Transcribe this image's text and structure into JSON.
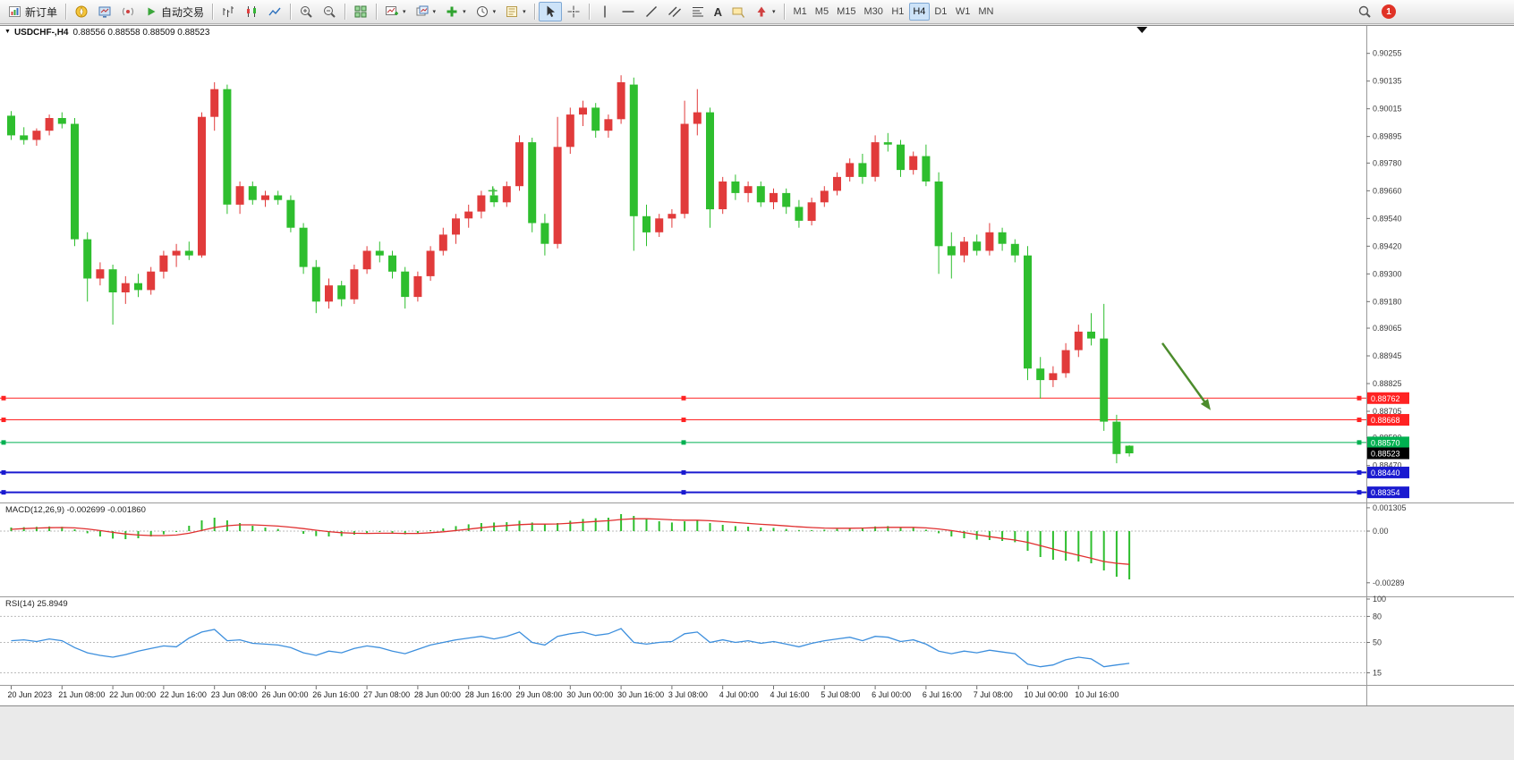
{
  "toolbar": {
    "new_order_label": "新订单",
    "auto_trading_label": "自动交易",
    "timeframes": [
      "M1",
      "M5",
      "M15",
      "M30",
      "H1",
      "H4",
      "D1",
      "W1",
      "MN"
    ],
    "active_timeframe": "H4",
    "notification_count": "1"
  },
  "icons": {
    "caret": "▾",
    "collapse": "▼",
    "text_tool": "A"
  },
  "chart": {
    "symbol_period": "USDCHF-,H4",
    "ohlc_text": "0.88556 0.88558 0.88509 0.88523"
  },
  "indicators": {
    "macd": {
      "label": "MACD(12,26,9)",
      "values": "-0.002699 -0.001860"
    },
    "rsi": {
      "label": "RSI(14)",
      "value": "25.8949"
    }
  },
  "theme": {
    "bull": "#e13b3b",
    "bear": "#2ebe2e",
    "macd_hist": "#2ebe2e",
    "macd_signal": "#e03030",
    "rsi": "#3d8fdd"
  },
  "chart_data": {
    "type": "candlestick",
    "symbol": "USDCHF-",
    "timeframe": "H4",
    "main": {
      "price_top": 0.9037,
      "price_bottom": 0.8831,
      "axis_labels": [
        "0.90255",
        "0.90135",
        "0.90015",
        "0.89895",
        "0.89780",
        "0.89660",
        "0.89540",
        "0.89420",
        "0.89300",
        "0.89180",
        "0.89065",
        "0.88945",
        "0.88825",
        "0.88705",
        "0.88590",
        "0.88470",
        "0.88354"
      ],
      "bid": {
        "price": 0.88523,
        "label": "0.88523"
      },
      "shift_marker_bar": 89
    },
    "candles": [
      [
        0.89985,
        0.90005,
        0.8988,
        0.899
      ],
      [
        0.899,
        0.89935,
        0.8986,
        0.8988
      ],
      [
        0.8988,
        0.8993,
        0.89855,
        0.8992
      ],
      [
        0.8992,
        0.8999,
        0.899,
        0.89975
      ],
      [
        0.89975,
        0.9,
        0.8993,
        0.8995
      ],
      [
        0.8995,
        0.89975,
        0.8942,
        0.8945
      ],
      [
        0.8945,
        0.8948,
        0.8918,
        0.8928
      ],
      [
        0.8928,
        0.8935,
        0.8925,
        0.8932
      ],
      [
        0.8932,
        0.8934,
        0.8908,
        0.8922
      ],
      [
        0.8922,
        0.8929,
        0.8917,
        0.8926
      ],
      [
        0.8926,
        0.893,
        0.892,
        0.8923
      ],
      [
        0.8923,
        0.8933,
        0.8921,
        0.8931
      ],
      [
        0.8931,
        0.894,
        0.8928,
        0.8938
      ],
      [
        0.8938,
        0.8943,
        0.8933,
        0.894
      ],
      [
        0.894,
        0.8944,
        0.8936,
        0.8938
      ],
      [
        0.8938,
        0.9,
        0.8937,
        0.8998
      ],
      [
        0.8998,
        0.9013,
        0.8992,
        0.901
      ],
      [
        0.901,
        0.9012,
        0.8956,
        0.896
      ],
      [
        0.896,
        0.897,
        0.8956,
        0.8968
      ],
      [
        0.8968,
        0.897,
        0.896,
        0.8962
      ],
      [
        0.8962,
        0.8966,
        0.8959,
        0.8964
      ],
      [
        0.8964,
        0.8966,
        0.896,
        0.8962
      ],
      [
        0.8962,
        0.8964,
        0.8948,
        0.895
      ],
      [
        0.895,
        0.8952,
        0.893,
        0.8933
      ],
      [
        0.8933,
        0.8936,
        0.8913,
        0.8918
      ],
      [
        0.8918,
        0.8928,
        0.8915,
        0.8925
      ],
      [
        0.8925,
        0.8927,
        0.8916,
        0.8919
      ],
      [
        0.8919,
        0.8934,
        0.8917,
        0.8932
      ],
      [
        0.8932,
        0.8942,
        0.893,
        0.894
      ],
      [
        0.894,
        0.8944,
        0.8935,
        0.8938
      ],
      [
        0.8938,
        0.894,
        0.8928,
        0.8931
      ],
      [
        0.8931,
        0.8933,
        0.8915,
        0.892
      ],
      [
        0.892,
        0.8931,
        0.8918,
        0.8929
      ],
      [
        0.8929,
        0.8942,
        0.8927,
        0.894
      ],
      [
        0.894,
        0.895,
        0.8938,
        0.8947
      ],
      [
        0.8947,
        0.8956,
        0.8943,
        0.8954
      ],
      [
        0.8954,
        0.896,
        0.895,
        0.8957
      ],
      [
        0.8957,
        0.8966,
        0.8954,
        0.8964
      ],
      [
        0.8964,
        0.8967,
        0.8959,
        0.8961
      ],
      [
        0.8961,
        0.897,
        0.8959,
        0.8968
      ],
      [
        0.8968,
        0.899,
        0.8966,
        0.8987
      ],
      [
        0.8987,
        0.8989,
        0.8948,
        0.8952
      ],
      [
        0.8952,
        0.8956,
        0.8938,
        0.8943
      ],
      [
        0.8943,
        0.8998,
        0.8941,
        0.8985
      ],
      [
        0.8985,
        0.9002,
        0.8982,
        0.8999
      ],
      [
        0.8999,
        0.9005,
        0.8994,
        0.9002
      ],
      [
        0.9002,
        0.9004,
        0.8989,
        0.8992
      ],
      [
        0.8992,
        0.8999,
        0.8989,
        0.8997
      ],
      [
        0.8997,
        0.9016,
        0.8995,
        0.9013
      ],
      [
        0.9012,
        0.9015,
        0.894,
        0.8955
      ],
      [
        0.8955,
        0.896,
        0.8942,
        0.8948
      ],
      [
        0.8948,
        0.8956,
        0.8946,
        0.8954
      ],
      [
        0.8954,
        0.8958,
        0.895,
        0.8956
      ],
      [
        0.8956,
        0.9005,
        0.8954,
        0.8995
      ],
      [
        0.8995,
        0.901,
        0.899,
        0.9
      ],
      [
        0.9,
        0.9002,
        0.895,
        0.8958
      ],
      [
        0.8958,
        0.8972,
        0.8956,
        0.897
      ],
      [
        0.897,
        0.8973,
        0.8962,
        0.8965
      ],
      [
        0.8965,
        0.897,
        0.8961,
        0.8968
      ],
      [
        0.8968,
        0.897,
        0.8959,
        0.8961
      ],
      [
        0.8961,
        0.8967,
        0.8958,
        0.8965
      ],
      [
        0.8965,
        0.8967,
        0.8956,
        0.8959
      ],
      [
        0.8959,
        0.8962,
        0.895,
        0.8953
      ],
      [
        0.8953,
        0.8963,
        0.8951,
        0.8961
      ],
      [
        0.8961,
        0.8968,
        0.8959,
        0.8966
      ],
      [
        0.8966,
        0.8974,
        0.8964,
        0.8972
      ],
      [
        0.8972,
        0.898,
        0.897,
        0.8978
      ],
      [
        0.8978,
        0.8982,
        0.8969,
        0.8972
      ],
      [
        0.8972,
        0.899,
        0.897,
        0.8987
      ],
      [
        0.8987,
        0.8991,
        0.8983,
        0.8986
      ],
      [
        0.8986,
        0.8988,
        0.8972,
        0.8975
      ],
      [
        0.8975,
        0.8983,
        0.8973,
        0.8981
      ],
      [
        0.8981,
        0.8986,
        0.8968,
        0.897
      ],
      [
        0.897,
        0.8974,
        0.893,
        0.8942
      ],
      [
        0.8942,
        0.8948,
        0.8928,
        0.8938
      ],
      [
        0.8938,
        0.8946,
        0.8935,
        0.8944
      ],
      [
        0.8944,
        0.8947,
        0.8938,
        0.894
      ],
      [
        0.894,
        0.8952,
        0.8938,
        0.8948
      ],
      [
        0.8948,
        0.895,
        0.894,
        0.8943
      ],
      [
        0.8943,
        0.8945,
        0.8935,
        0.8938
      ],
      [
        0.8938,
        0.8942,
        0.8884,
        0.8889
      ],
      [
        0.8889,
        0.8894,
        0.8876,
        0.8884
      ],
      [
        0.8884,
        0.889,
        0.8881,
        0.8887
      ],
      [
        0.8887,
        0.89,
        0.8885,
        0.8897
      ],
      [
        0.8897,
        0.8908,
        0.8894,
        0.8905
      ],
      [
        0.8905,
        0.8913,
        0.8899,
        0.8902
      ],
      [
        0.8902,
        0.8917,
        0.8862,
        0.8866
      ],
      [
        0.8866,
        0.8869,
        0.8848,
        0.8852
      ],
      [
        0.88556,
        0.88558,
        0.88509,
        0.88523
      ]
    ],
    "time_labels": [
      "20 Jun 2023",
      "21 Jun 08:00",
      "22 Jun 00:00",
      "22 Jun 16:00",
      "23 Jun 08:00",
      "26 Jun 00:00",
      "26 Jun 16:00",
      "27 Jun 08:00",
      "28 Jun 00:00",
      "28 Jun 16:00",
      "29 Jun 08:00",
      "30 Jun 00:00",
      "30 Jun 16:00",
      "3 Jul 08:00",
      "4 Jul 00:00",
      "4 Jul 16:00",
      "5 Jul 08:00",
      "6 Jul 00:00",
      "6 Jul 16:00",
      "7 Jul 08:00",
      "10 Jul 00:00",
      "10 Jul 16:00"
    ],
    "hlines": [
      {
        "price": 0.88762,
        "label": "0.88762",
        "color": "#ff2222",
        "thick": false
      },
      {
        "price": 0.88668,
        "label": "0.88668",
        "color": "#ff2222",
        "thick": false
      },
      {
        "price": 0.8857,
        "label": "0.88570",
        "color": "#00b050",
        "thick": false
      },
      {
        "price": 0.8844,
        "label": "0.88440",
        "color": "#1a1ad0",
        "thick": true
      },
      {
        "price": 0.88354,
        "label": "0.88354",
        "color": "#1a1ad0",
        "thick": true
      }
    ],
    "macd": {
      "histogram": [
        0.0002,
        0.00022,
        0.00024,
        0.00026,
        0.00024,
        0.0001,
        -0.00012,
        -0.0003,
        -0.00042,
        -0.00045,
        -0.0004,
        -0.0003,
        -0.00018,
        -5e-05,
        0.0003,
        0.0006,
        0.00075,
        0.0006,
        0.00045,
        0.0003,
        0.0002,
        0.00012,
        0.0,
        -0.00015,
        -0.00028,
        -0.0003,
        -0.00028,
        -0.0002,
        -0.0001,
        -5e-05,
        -0.0001,
        -0.00018,
        -0.00012,
        5e-05,
        0.00015,
        0.00028,
        0.00038,
        0.00045,
        0.00048,
        0.0005,
        0.00058,
        0.00048,
        0.00038,
        0.00045,
        0.00058,
        0.00068,
        0.00072,
        0.00075,
        0.00095,
        0.00085,
        0.00068,
        0.00055,
        0.00048,
        0.00055,
        0.0006,
        0.00045,
        0.00035,
        0.00028,
        0.00025,
        0.0002,
        0.00018,
        0.00012,
        6e-05,
        5e-05,
        8e-05,
        0.00012,
        0.00018,
        0.0002,
        0.00026,
        0.00028,
        0.00022,
        0.00018,
        8e-05,
        -0.00012,
        -0.0003,
        -0.0004,
        -0.00048,
        -0.0005,
        -0.00055,
        -0.00062,
        -0.0011,
        -0.00145,
        -0.0016,
        -0.00165,
        -0.0017,
        -0.0018,
        -0.0022,
        -0.00255,
        -0.0027
      ],
      "signal": [
        0.0001,
        0.00014,
        0.00017,
        0.00019,
        0.0002,
        0.00018,
        0.00012,
        3e-05,
        -7e-05,
        -0.00016,
        -0.00022,
        -0.00025,
        -0.00025,
        -0.00022,
        -0.00012,
        4e-05,
        0.0002,
        0.0003,
        0.00035,
        0.00035,
        0.00032,
        0.00028,
        0.00022,
        0.00014,
        5e-05,
        -3e-05,
        -9e-05,
        -0.00012,
        -0.00013,
        -0.00012,
        -0.00012,
        -0.00013,
        -0.00013,
        -9e-05,
        -4e-05,
        3e-05,
        0.00011,
        0.00019,
        0.00026,
        0.00031,
        0.00036,
        0.00039,
        0.00039,
        0.0004,
        0.00044,
        0.00049,
        0.00054,
        0.00058,
        0.00065,
        0.00069,
        0.00069,
        0.00067,
        0.00063,
        0.00061,
        0.00061,
        0.00058,
        0.00053,
        0.00048,
        0.00043,
        0.00038,
        0.00034,
        0.00029,
        0.00024,
        0.0002,
        0.00017,
        0.00016,
        0.00016,
        0.00017,
        0.00019,
        0.00021,
        0.00021,
        0.00021,
        0.00018,
        0.00012,
        3e-05,
        -8e-05,
        -0.0002,
        -0.00031,
        -0.00041,
        -0.0005,
        -0.00063,
        -0.00081,
        -0.001,
        -0.00118,
        -0.00135,
        -0.00152,
        -0.0017,
        -0.0018,
        -0.00186
      ],
      "axis": [
        {
          "value": 0.001305,
          "label": "0.001305"
        },
        {
          "value": 0,
          "label": "0.00"
        },
        {
          "value": -0.00289,
          "label": "-0.00289"
        }
      ]
    },
    "rsi": {
      "values": [
        52,
        53,
        51,
        54,
        52,
        44,
        38,
        35,
        33,
        36,
        40,
        43,
        46,
        45,
        55,
        62,
        65,
        52,
        53,
        49,
        48,
        47,
        44,
        38,
        35,
        40,
        38,
        43,
        46,
        44,
        40,
        37,
        42,
        47,
        50,
        53,
        55,
        57,
        54,
        57,
        62,
        50,
        47,
        57,
        60,
        62,
        58,
        60,
        66,
        50,
        48,
        50,
        51,
        60,
        62,
        50,
        53,
        50,
        52,
        49,
        51,
        48,
        45,
        49,
        52,
        54,
        56,
        52,
        57,
        56,
        51,
        53,
        48,
        40,
        37,
        40,
        38,
        41,
        39,
        37,
        25,
        22,
        24,
        30,
        33,
        31,
        22,
        24,
        25.89
      ],
      "levels": [
        80,
        50,
        15
      ],
      "axis": [
        {
          "value": 100,
          "label": "100"
        },
        {
          "value": 80,
          "label": "80"
        },
        {
          "value": 50,
          "label": "50"
        },
        {
          "value": 15,
          "label": "15"
        }
      ]
    },
    "annotations": {
      "arrow": {
        "from_bar": 90.6,
        "from_price": 0.89,
        "to_bar": 94.4,
        "to_price": 0.8871,
        "color": "#4c8c2c"
      },
      "cross": {
        "bar": 37.9,
        "price": 0.8966,
        "color": "#3fbf3f"
      }
    }
  }
}
